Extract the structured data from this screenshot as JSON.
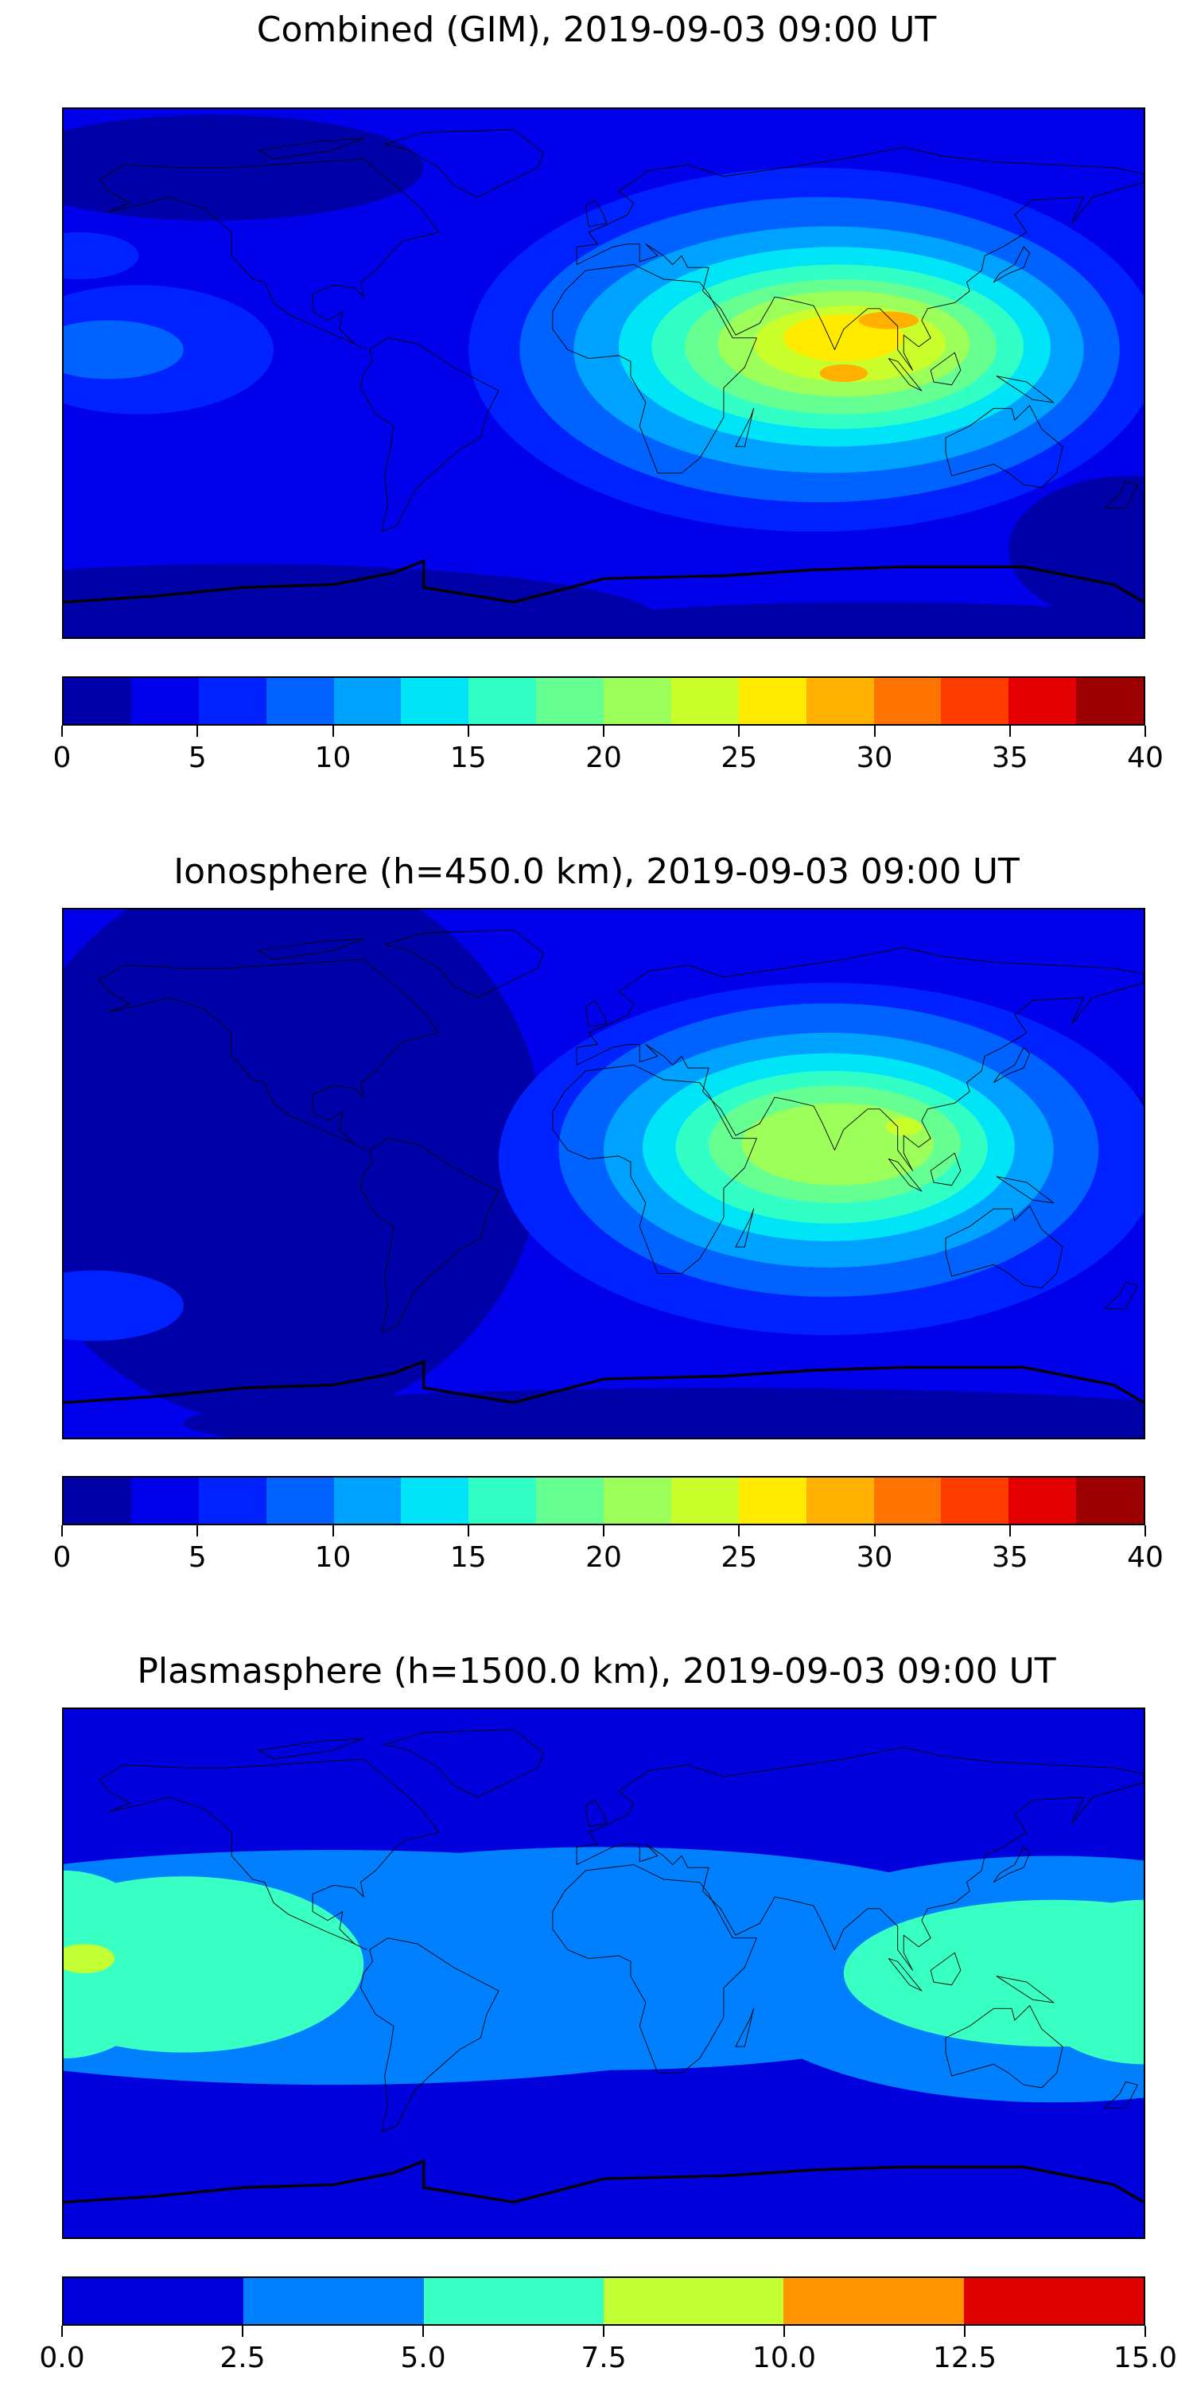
{
  "chart_data": [
    {
      "type": "heatmap",
      "subtype": "filled-contour world map",
      "title": "Combined (GIM), 2019-09-03 09:00 UT",
      "levels": [
        0,
        2.5,
        5,
        7.5,
        10,
        12.5,
        15,
        17.5,
        20,
        22.5,
        25,
        27.5,
        30,
        32.5,
        35,
        37.5,
        40
      ],
      "colors": [
        "#0000a8",
        "#0000ea",
        "#0022ff",
        "#0062ff",
        "#00a2ff",
        "#00e4f8",
        "#32ffc6",
        "#66ff92",
        "#9cff5a",
        "#caff2c",
        "#ffea00",
        "#ffb000",
        "#ff7400",
        "#ff3c00",
        "#e40000",
        "#9c0000"
      ],
      "colorbar_ticks": [
        "0",
        "5",
        "10",
        "15",
        "20",
        "25",
        "30",
        "35",
        "40"
      ],
      "colorbar_range": [
        0,
        40
      ],
      "peak": {
        "lon": 78,
        "lat": 10,
        "value_range": "27.5-30"
      }
    },
    {
      "type": "heatmap",
      "subtype": "filled-contour world map",
      "title": "Ionosphere  (h=450.0 km), 2019-09-03 09:00 UT",
      "levels": [
        0,
        2.5,
        5,
        7.5,
        10,
        12.5,
        15,
        17.5,
        20,
        22.5,
        25,
        27.5,
        30,
        32.5,
        35,
        37.5,
        40
      ],
      "colors": [
        "#0000a8",
        "#0000ea",
        "#0022ff",
        "#0062ff",
        "#00a2ff",
        "#00e4f8",
        "#32ffc6",
        "#66ff92",
        "#9cff5a",
        "#caff2c",
        "#ffea00",
        "#ffb000",
        "#ff7400",
        "#ff3c00",
        "#e40000",
        "#9c0000"
      ],
      "colorbar_ticks": [
        "0",
        "5",
        "10",
        "15",
        "20",
        "25",
        "30",
        "35",
        "40"
      ],
      "colorbar_range": [
        0,
        40
      ],
      "peak": {
        "lon": 75,
        "lat": 10,
        "value_range": "20-22.5"
      }
    },
    {
      "type": "heatmap",
      "subtype": "filled-contour world map",
      "title": "Plasmasphere (h=1500.0 km), 2019-09-03 09:00 UT",
      "levels": [
        0,
        2.5,
        5,
        7.5,
        10,
        12.5,
        15
      ],
      "colors": [
        "#0000dc",
        "#0080ff",
        "#38ffc2",
        "#c2ff34",
        "#ff9400",
        "#de0000"
      ],
      "colorbar_ticks": [
        "0.0",
        "2.5",
        "5.0",
        "7.5",
        "10.0",
        "12.5",
        "15.0"
      ],
      "colorbar_range": [
        0,
        15
      ],
      "peak": {
        "lon": -175,
        "lat": 5,
        "value_range": "7.5-10"
      }
    }
  ]
}
